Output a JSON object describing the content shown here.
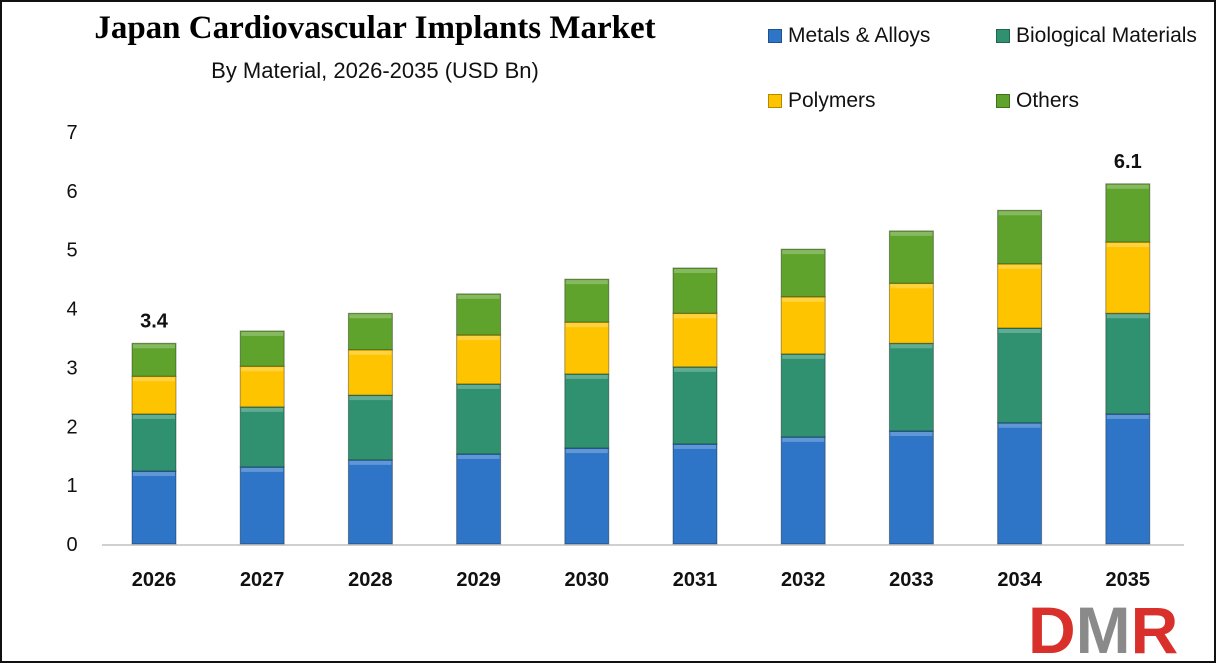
{
  "chart_data": {
    "type": "bar",
    "stacked": true,
    "title": "Japan Cardiovascular Implants Market",
    "subtitle": "By Material, 2026-2035 (USD Bn)",
    "xlabel": "",
    "ylabel": "",
    "ylim": [
      0,
      7
    ],
    "yticks": [
      "0",
      "1",
      "2",
      "3",
      "4",
      "5",
      "6",
      "7"
    ],
    "grid": false,
    "legend_position": "top-right",
    "categories": [
      "2026",
      "2027",
      "2028",
      "2029",
      "2030",
      "2031",
      "2032",
      "2033",
      "2034",
      "2035"
    ],
    "series": [
      {
        "name": "Metals & Alloys",
        "color": "#2e75c8",
        "values": [
          1.24,
          1.31,
          1.43,
          1.53,
          1.63,
          1.7,
          1.82,
          1.92,
          2.06,
          2.21
        ]
      },
      {
        "name": "Biological Materials",
        "color": "#2f9170",
        "values": [
          0.97,
          1.02,
          1.1,
          1.19,
          1.26,
          1.31,
          1.41,
          1.49,
          1.61,
          1.71
        ]
      },
      {
        "name": "Polymers",
        "color": "#ffc400",
        "values": [
          0.64,
          0.69,
          0.77,
          0.83,
          0.88,
          0.91,
          0.97,
          1.02,
          1.09,
          1.21
        ]
      },
      {
        "name": "Others",
        "color": "#5fa22c",
        "values": [
          0.56,
          0.6,
          0.62,
          0.7,
          0.73,
          0.77,
          0.81,
          0.89,
          0.91,
          0.99
        ]
      }
    ],
    "data_labels": [
      {
        "category": "2026",
        "text": "3.4"
      },
      {
        "category": "2035",
        "text": "6.1"
      }
    ]
  },
  "logo": {
    "text": "DMR"
  }
}
